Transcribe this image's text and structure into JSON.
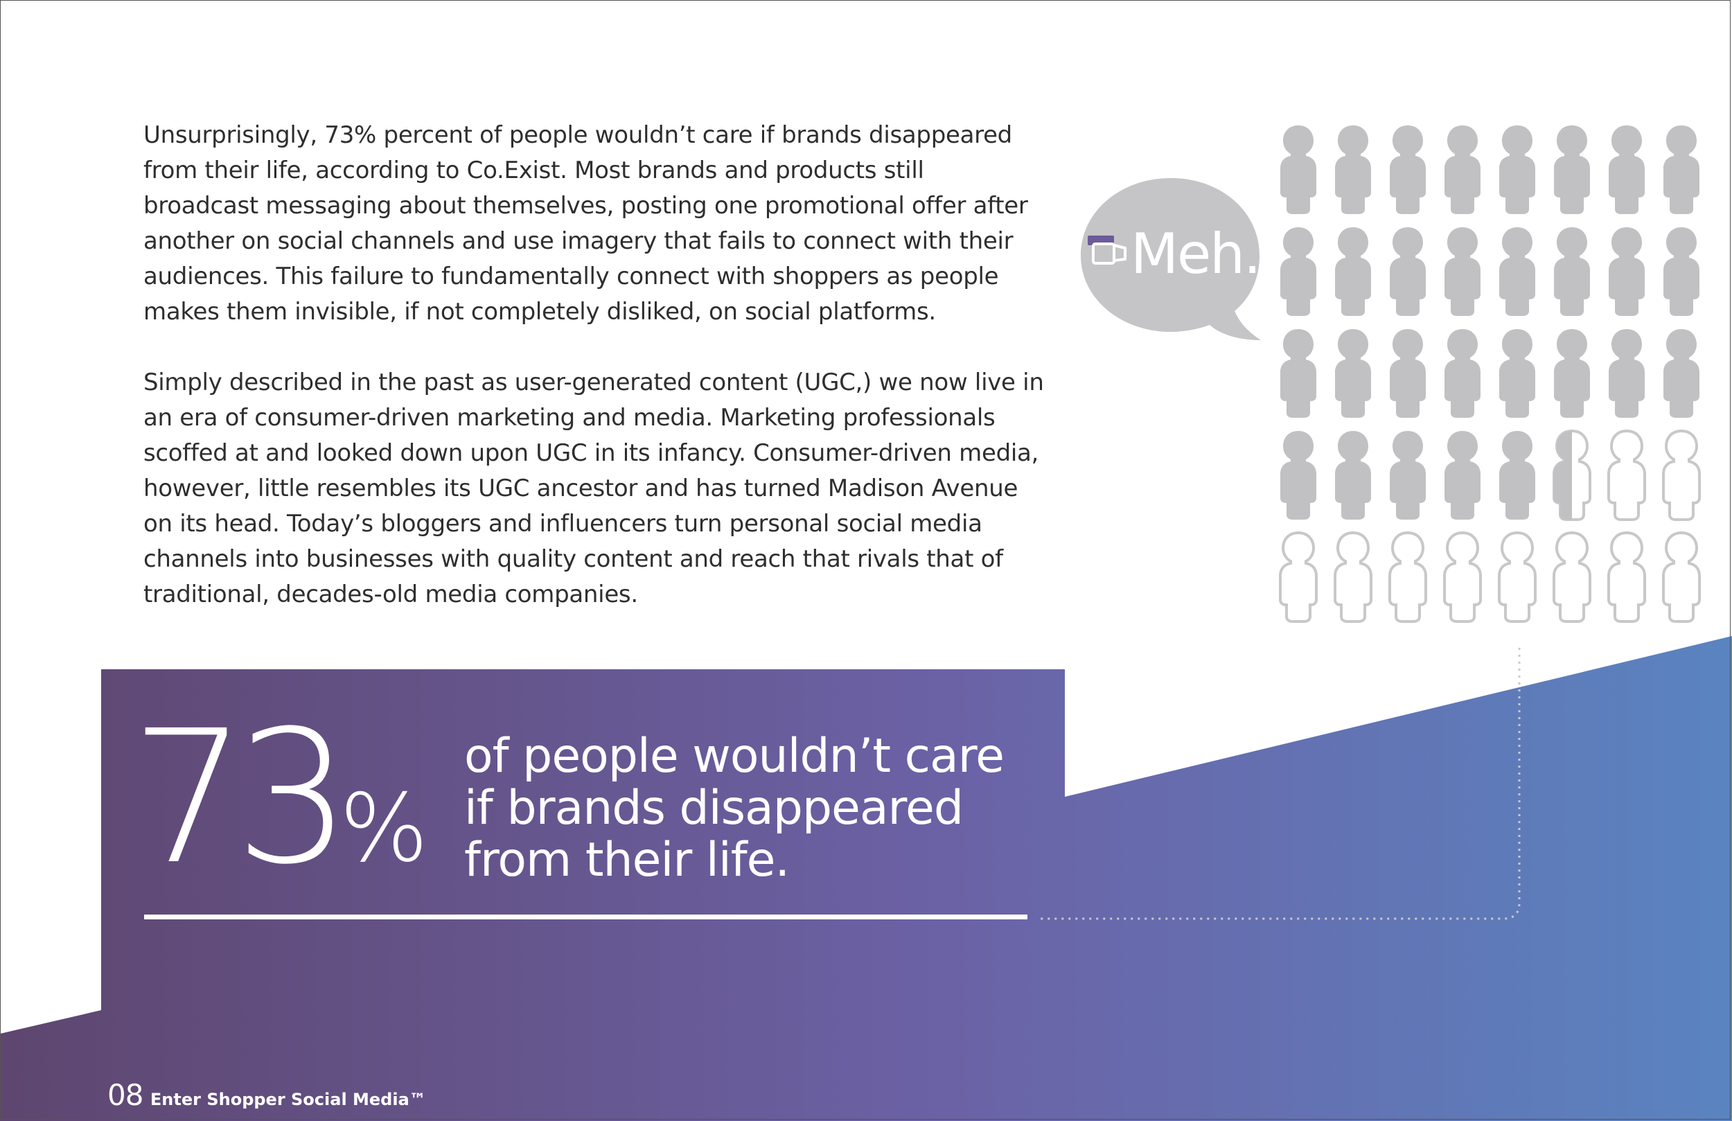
{
  "paragraphs": [
    "Unsurprisingly, 73% percent of people wouldn’t care if brands disappeared from their life, according to Co.Exist. Most brands and products still broadcast messaging about themselves, posting one promotional offer after another on social channels and use imagery that fails to connect with their audiences. This failure to fundamentally connect with shoppers as people makes them invisible, if not completely disliked, on social platforms.",
    "Simply described in the past as user-generated content (UGC,) we now live in an era of consumer-driven marketing and media. Marketing professionals scoffed at and looked down upon UGC in its infancy. Consumer-driven media, however, little resembles its UGC ancestor and has turned Madison Avenue on its head. Today’s bloggers and influencers turn personal social media channels into businesses with quality content and reach that rivals that of traditional, decades-old media companies."
  ],
  "stat": {
    "number": "73",
    "percent_sign": "%",
    "caption_lines": [
      "of people wouldn’t care",
      "if brands disappeared",
      "from their life."
    ],
    "value_percent": 73
  },
  "speech_bubble": {
    "text": "Meh.",
    "icon": "thumbs-down-icon"
  },
  "people_grid": {
    "rows": 5,
    "columns": 8,
    "total": 40,
    "filled": 29.2
  },
  "footer": {
    "page_number": "08",
    "title": "Enter Shopper Social Media™"
  },
  "colors": {
    "gradient_start": "#5e466f",
    "gradient_mid": "#6b62a6",
    "gradient_end": "#5a84c0",
    "figure_filled": "#c1c1c3",
    "figure_outline": "#c8c8ca",
    "text": "#2e2e2e"
  }
}
